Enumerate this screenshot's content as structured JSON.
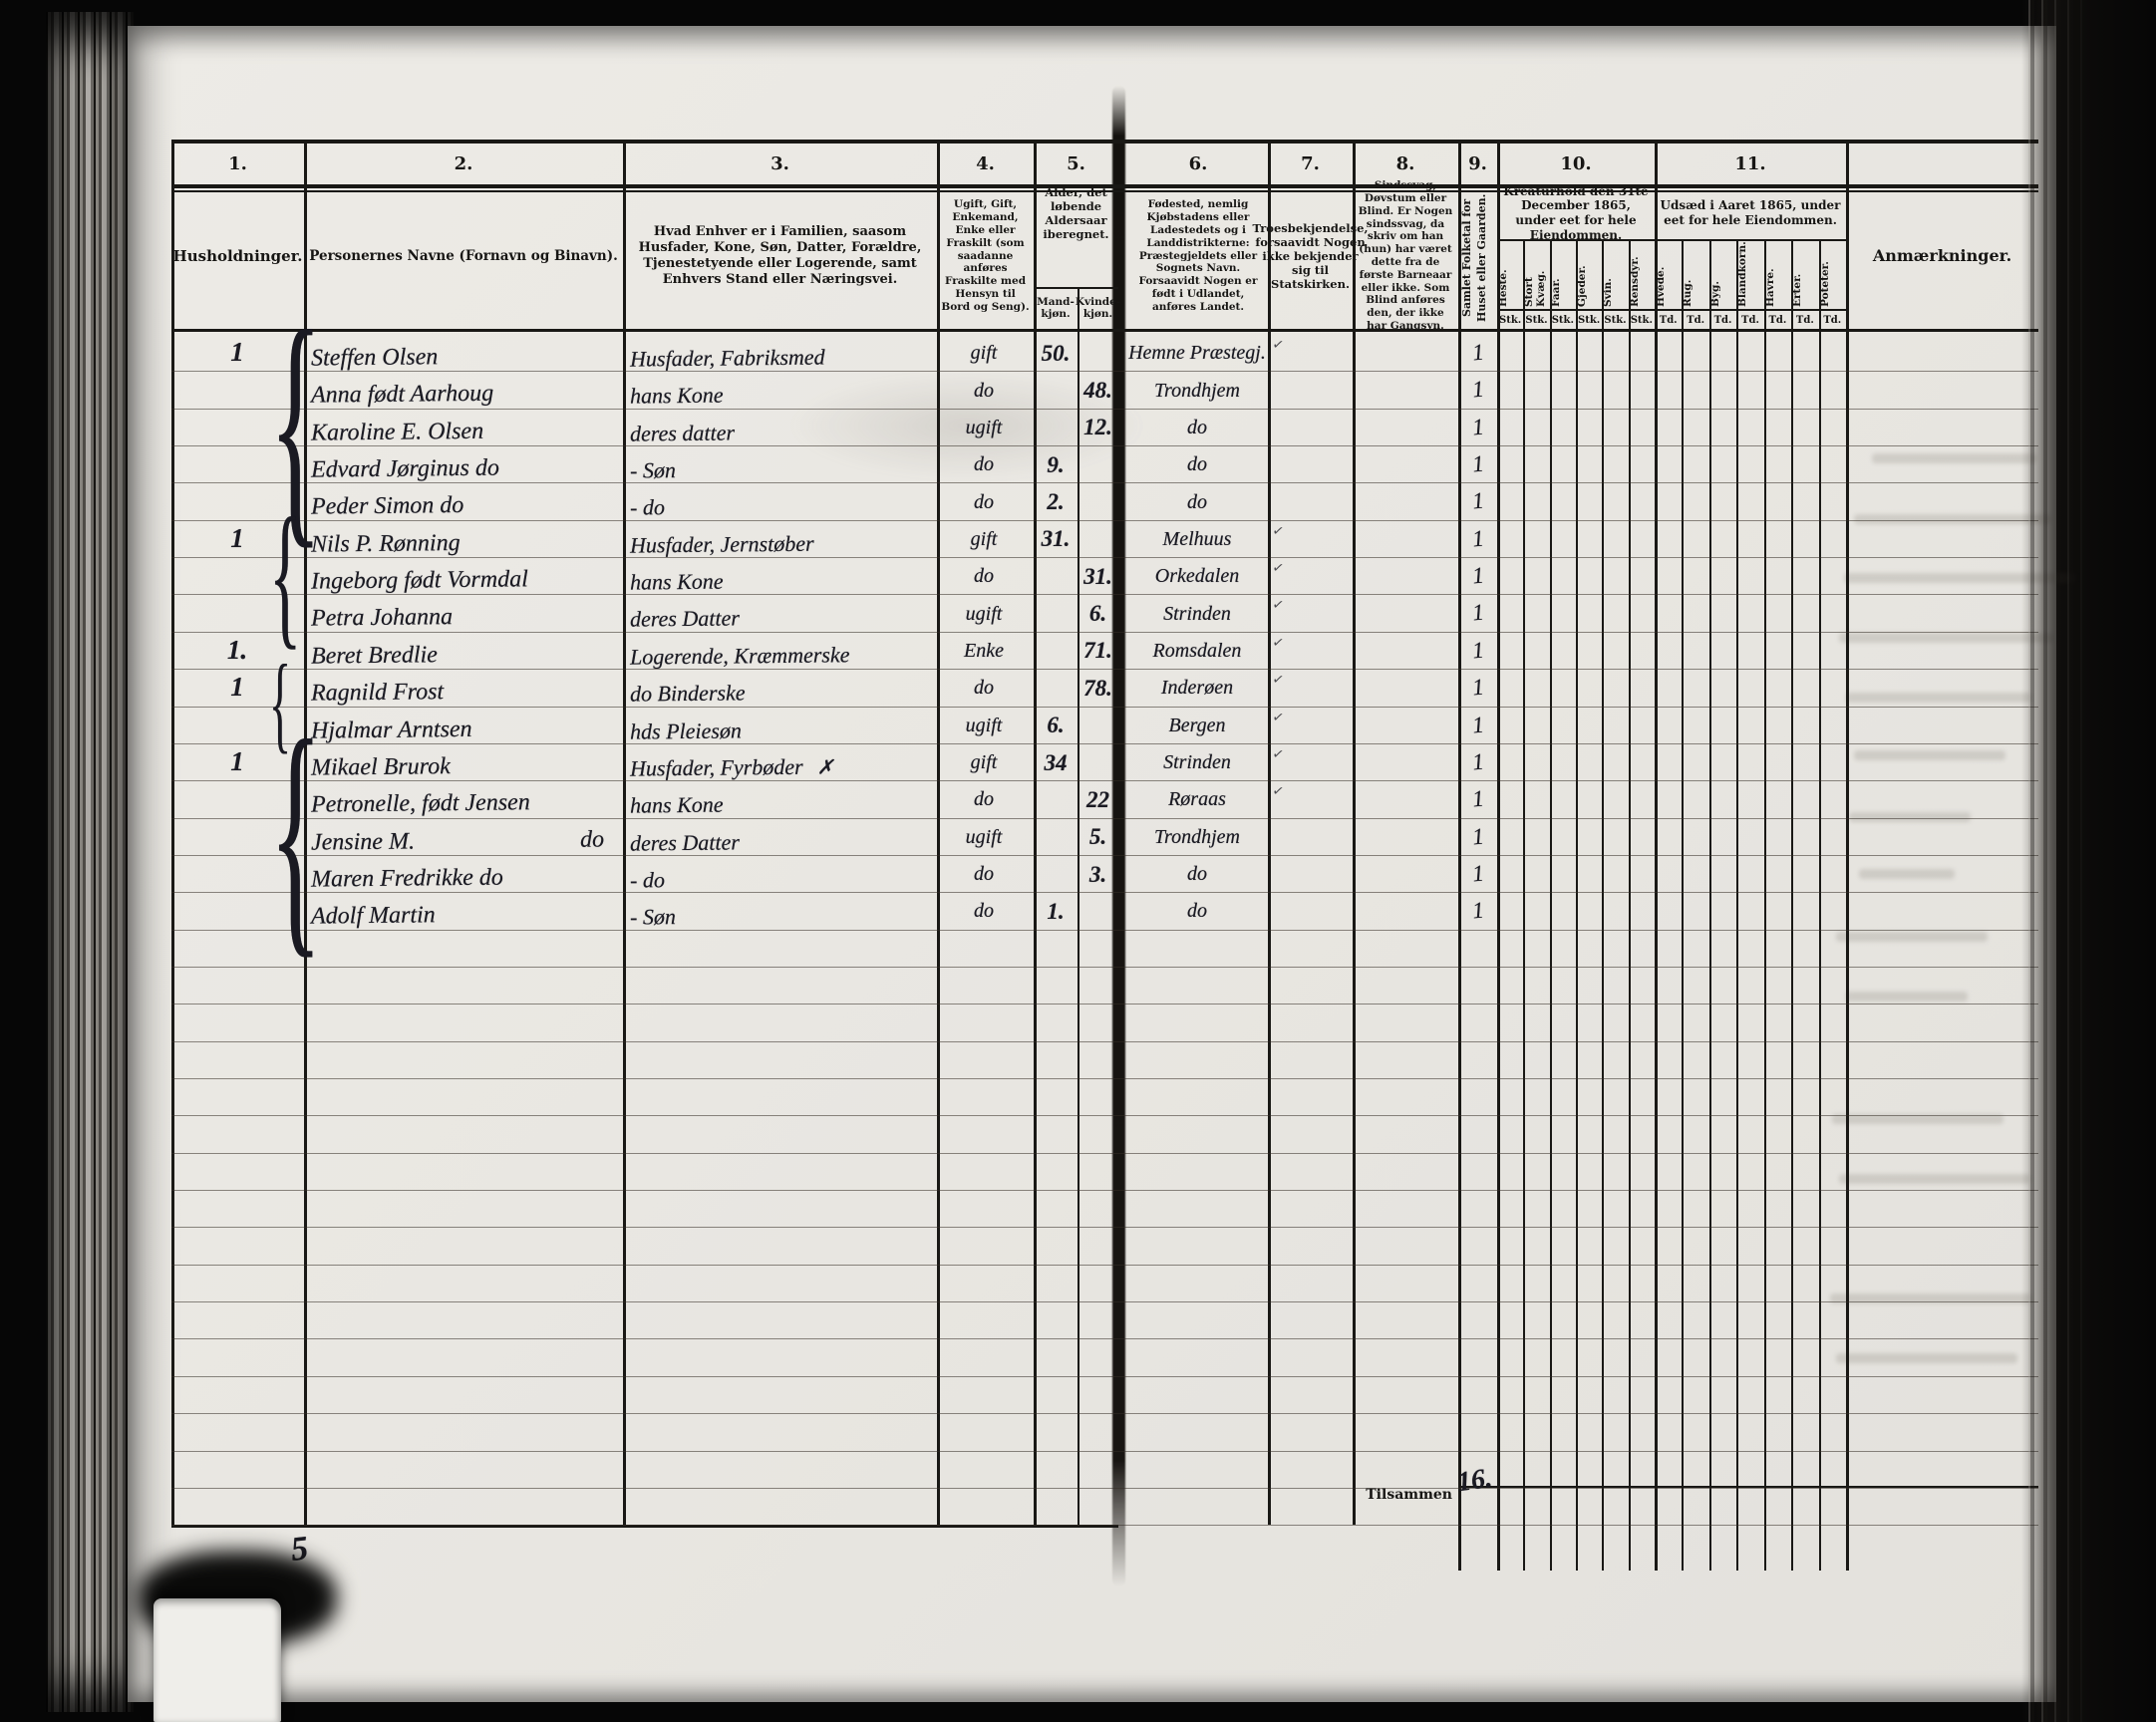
{
  "header": {
    "columns": [
      {
        "num": "1.",
        "title": "Husholdninger."
      },
      {
        "num": "2.",
        "title": "Personernes Navne (Fornavn og Binavn)."
      },
      {
        "num": "3.",
        "title": "Hvad Enhver er i Familien, saasom Husfader, Kone, Søn, Datter, Forældre, Tjenestetyende eller Logerende, samt Enhvers Stand eller Næringsvei."
      },
      {
        "num": "4.",
        "title": "Ugift, Gift, Enkemand, Enke eller Fraskilt (som saadanne anføres Fraskilte med Hensyn til Bord og Seng)."
      },
      {
        "num": "5.",
        "title": "Alder, det løbende Aldersaar iberegnet.",
        "subcolumns": [
          "Mandkjøn.",
          "Kvindekjøn."
        ]
      },
      {
        "num": "6.",
        "title": "Fødested, nemlig Kjøbstadens eller Ladestedets og i Landdistrikterne: Præstegjeldets eller Sognets Navn. Forsaavidt Nogen er født i Udlandet, anføres Landet."
      },
      {
        "num": "7.",
        "title": "Troesbekjendelse, forsaavidt Nogen ikke bekjender sig til Statskirken."
      },
      {
        "num": "8.",
        "title": "Sindssvag, Døvstum eller Blind. Er Nogen sindssvag, da skriv om han (hun) har været dette fra de første Barneaar eller ikke. Som Blind anføres den, der ikke har Gangsyn."
      },
      {
        "num": "9.",
        "title": "Samlet Folketal for Huset eller Gaarden."
      },
      {
        "num": "10.",
        "title": "Kreaturhold den 31te December 1865, under eet for hele Eiendommen.",
        "subcolumns": [
          "Heste.",
          "Stort Kvæg.",
          "Faar.",
          "Gjeder.",
          "Svin.",
          "Rensdyr."
        ],
        "unit": "Stk."
      },
      {
        "num": "11.",
        "title": "Udsæd i Aaret 1865, under eet for hele Eiendommen.",
        "subcolumns": [
          "Hvede.",
          "Rug.",
          "Byg.",
          "Blandkorn.",
          "Havre.",
          "Erter.",
          "Poteter."
        ],
        "unit": "Td."
      },
      {
        "num": "",
        "title": "Anmærkninger."
      }
    ]
  },
  "households": [
    {
      "row_start": 1,
      "row_span": 5,
      "label": "1"
    },
    {
      "row_start": 6,
      "row_span": 3,
      "label": "1"
    },
    {
      "row_start": 9,
      "row_span": 1,
      "label": "1."
    },
    {
      "row_start": 10,
      "row_span": 2,
      "label": "1"
    },
    {
      "row_start": 12,
      "row_span": 5,
      "label": "1"
    }
  ],
  "rows": [
    {
      "name": "Steffen Olsen",
      "family_position": "Husfader, Fabriksmed",
      "marital_status": "gift",
      "age_male": "50.",
      "age_female": "",
      "birthplace": "Hemne Præstegj.",
      "creed_mark": true,
      "x_mark": false,
      "folketal": "1"
    },
    {
      "name": "Anna født Aarhoug",
      "family_position": "hans Kone",
      "marital_status": "do",
      "age_male": "",
      "age_female": "48.",
      "birthplace": "Trondhjem",
      "creed_mark": false,
      "x_mark": false,
      "folketal": "1"
    },
    {
      "name": "Karoline E. Olsen",
      "family_position": "deres datter",
      "marital_status": "ugift",
      "age_male": "",
      "age_female": "12.",
      "birthplace": "do",
      "creed_mark": false,
      "x_mark": false,
      "folketal": "1"
    },
    {
      "name": "Edvard Jørginus do",
      "family_position": "- Søn",
      "marital_status": "do",
      "age_male": "9.",
      "age_female": "",
      "birthplace": "do",
      "creed_mark": false,
      "x_mark": false,
      "folketal": "1"
    },
    {
      "name": "Peder Simon do",
      "family_position": "- do",
      "marital_status": "do",
      "age_male": "2.",
      "age_female": "",
      "birthplace": "do",
      "creed_mark": false,
      "x_mark": false,
      "folketal": "1"
    },
    {
      "name": "Nils P. Rønning",
      "family_position": "Husfader, Jernstøber",
      "marital_status": "gift",
      "age_male": "31.",
      "age_female": "",
      "birthplace": "Melhuus",
      "creed_mark": true,
      "x_mark": false,
      "folketal": "1"
    },
    {
      "name": "Ingeborg født Vormdal",
      "family_position": "hans Kone",
      "marital_status": "do",
      "age_male": "",
      "age_female": "31.",
      "birthplace": "Orkedalen",
      "creed_mark": true,
      "x_mark": false,
      "folketal": "1"
    },
    {
      "name": "Petra Johanna",
      "family_position": "deres Datter",
      "marital_status": "ugift",
      "age_male": "",
      "age_female": "6.",
      "birthplace": "Strinden",
      "creed_mark": true,
      "x_mark": false,
      "folketal": "1"
    },
    {
      "name": "Beret Bredlie",
      "family_position": "Logerende, Kræmmerske",
      "marital_status": "Enke",
      "age_male": "",
      "age_female": "71.",
      "birthplace": "Romsdalen",
      "creed_mark": true,
      "x_mark": false,
      "folketal": "1"
    },
    {
      "name": "Ragnild Frost",
      "family_position": "do Binderske",
      "marital_status": "do",
      "age_male": "",
      "age_female": "78.",
      "birthplace": "Inderøen",
      "creed_mark": true,
      "x_mark": false,
      "folketal": "1"
    },
    {
      "name": "Hjalmar Arntsen",
      "family_position": "hds Pleiesøn",
      "marital_status": "ugift",
      "age_male": "6.",
      "age_female": "",
      "birthplace": "Bergen",
      "creed_mark": true,
      "x_mark": false,
      "folketal": "1"
    },
    {
      "name": "Mikael Brurok",
      "family_position": "Husfader, Fyrbøder",
      "marital_status": "gift",
      "age_male": "34",
      "age_female": "",
      "birthplace": "Strinden",
      "creed_mark": true,
      "x_mark": true,
      "folketal": "1"
    },
    {
      "name": "Petronelle, født Jensen",
      "family_position": "hans Kone",
      "marital_status": "do",
      "age_male": "",
      "age_female": "22",
      "birthplace": "Røraas",
      "creed_mark": true,
      "x_mark": false,
      "folketal": "1"
    },
    {
      "name": "Jensine M.",
      "name_suffix": "do",
      "family_position": "deres Datter",
      "marital_status": "ugift",
      "age_male": "",
      "age_female": "5.",
      "birthplace": "Trondhjem",
      "creed_mark": false,
      "x_mark": false,
      "folketal": "1"
    },
    {
      "name": "Maren Fredrikke do",
      "family_position": "- do",
      "marital_status": "do",
      "age_male": "",
      "age_female": "3.",
      "birthplace": "do",
      "creed_mark": false,
      "x_mark": false,
      "folketal": "1"
    },
    {
      "name": "Adolf Martin",
      "family_position": "- Søn",
      "marital_status": "do",
      "age_male": "1.",
      "age_female": "",
      "birthplace": "do",
      "creed_mark": false,
      "x_mark": false,
      "folketal": "1"
    }
  ],
  "footer": {
    "tilsammen_label": "Tilsammen",
    "tilsammen_value": "16.",
    "page_number": "5"
  },
  "icons": {
    "creed_check": "✓",
    "attention_x": "✗"
  },
  "colors": {
    "paper": "#eae8e3",
    "ink_print": "#171614",
    "ink_hand": "#1a1a22",
    "rule_line": "#3a362f",
    "background": "#060606"
  }
}
